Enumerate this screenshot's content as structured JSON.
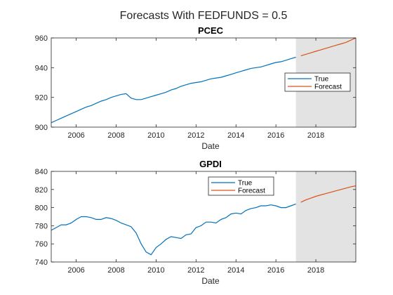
{
  "figure": {
    "title": "Forecasts With FEDFUNDS = 0.5"
  },
  "chart_data": [
    {
      "type": "line",
      "title": "PCEC",
      "xlabel": "Date",
      "ylabel": "",
      "xlim": [
        2004.75,
        2020.0
      ],
      "ylim": [
        900,
        960
      ],
      "xticks": [
        2006,
        2008,
        2010,
        2012,
        2014,
        2016,
        2018
      ],
      "yticks": [
        900,
        920,
        940,
        960
      ],
      "shaded_region": [
        2017.0,
        2020.0
      ],
      "legend_position": "right",
      "series": [
        {
          "name": "True",
          "color": "#0072BD",
          "x": [
            2004.75,
            2005.0,
            2005.25,
            2005.5,
            2005.75,
            2006.0,
            2006.25,
            2006.5,
            2006.75,
            2007.0,
            2007.25,
            2007.5,
            2007.75,
            2008.0,
            2008.25,
            2008.5,
            2008.75,
            2009.0,
            2009.25,
            2009.5,
            2009.75,
            2010.0,
            2010.25,
            2010.5,
            2010.75,
            2011.0,
            2011.25,
            2011.5,
            2011.75,
            2012.0,
            2012.25,
            2012.5,
            2012.75,
            2013.0,
            2013.25,
            2013.5,
            2013.75,
            2014.0,
            2014.25,
            2014.5,
            2014.75,
            2015.0,
            2015.25,
            2015.5,
            2015.75,
            2016.0,
            2016.25,
            2016.5,
            2016.75,
            2017.0
          ],
          "values": [
            903.0,
            904.5,
            906.0,
            907.5,
            909.0,
            910.5,
            912.0,
            913.5,
            914.5,
            916.0,
            917.5,
            918.5,
            920.0,
            921.0,
            922.0,
            922.5,
            919.5,
            918.5,
            918.5,
            919.5,
            920.5,
            921.5,
            922.5,
            923.5,
            925.0,
            926.0,
            927.5,
            928.5,
            929.5,
            930.0,
            930.5,
            931.5,
            932.5,
            933.0,
            933.5,
            934.5,
            935.5,
            936.5,
            937.5,
            938.5,
            939.5,
            940.0,
            940.5,
            941.5,
            942.5,
            943.5,
            944.0,
            945.0,
            946.0,
            947.0
          ]
        },
        {
          "name": "Forecast",
          "color": "#D95319",
          "x": [
            2017.25,
            2017.5,
            2017.75,
            2018.0,
            2018.25,
            2018.5,
            2018.75,
            2019.0,
            2019.25,
            2019.5,
            2019.75,
            2020.0
          ],
          "values": [
            948.0,
            949.0,
            950.0,
            951.0,
            952.0,
            953.0,
            954.0,
            955.0,
            956.0,
            957.0,
            958.5,
            960.0
          ]
        }
      ]
    },
    {
      "type": "line",
      "title": "GPDI",
      "xlabel": "Date",
      "ylabel": "",
      "xlim": [
        2004.75,
        2020.0
      ],
      "ylim": [
        740,
        840
      ],
      "xticks": [
        2006,
        2008,
        2010,
        2012,
        2014,
        2016,
        2018
      ],
      "yticks": [
        740,
        760,
        780,
        800,
        820,
        840
      ],
      "shaded_region": [
        2017.0,
        2020.0
      ],
      "legend_position": "top-right",
      "series": [
        {
          "name": "True",
          "color": "#0072BD",
          "x": [
            2004.75,
            2005.0,
            2005.25,
            2005.5,
            2005.75,
            2006.0,
            2006.25,
            2006.5,
            2006.75,
            2007.0,
            2007.25,
            2007.5,
            2007.75,
            2008.0,
            2008.25,
            2008.5,
            2008.75,
            2009.0,
            2009.25,
            2009.5,
            2009.75,
            2010.0,
            2010.25,
            2010.5,
            2010.75,
            2011.0,
            2011.25,
            2011.5,
            2011.75,
            2012.0,
            2012.25,
            2012.5,
            2012.75,
            2013.0,
            2013.25,
            2013.5,
            2013.75,
            2014.0,
            2014.25,
            2014.5,
            2014.75,
            2015.0,
            2015.25,
            2015.5,
            2015.75,
            2016.0,
            2016.25,
            2016.5,
            2016.75,
            2017.0
          ],
          "values": [
            775.0,
            778.0,
            781.0,
            781.0,
            783.0,
            787.0,
            790.0,
            790.0,
            789.0,
            787.0,
            787.0,
            789.0,
            788.0,
            786.0,
            783.0,
            781.0,
            779.0,
            772.0,
            760.0,
            751.0,
            748.0,
            756.0,
            760.0,
            765.0,
            768.0,
            767.0,
            766.0,
            770.0,
            771.0,
            778.0,
            780.0,
            784.0,
            784.0,
            783.0,
            787.0,
            789.0,
            793.0,
            794.0,
            793.0,
            797.0,
            799.0,
            800.0,
            802.0,
            802.0,
            803.0,
            802.0,
            800.0,
            800.0,
            802.0,
            804.0
          ]
        },
        {
          "name": "Forecast",
          "color": "#D95319",
          "x": [
            2017.25,
            2017.5,
            2017.75,
            2018.0,
            2018.25,
            2018.5,
            2018.75,
            2019.0,
            2019.25,
            2019.5,
            2019.75,
            2020.0
          ],
          "values": [
            806.0,
            808.5,
            810.5,
            812.5,
            814.0,
            815.5,
            817.0,
            818.5,
            820.0,
            821.5,
            823.0,
            824.0
          ]
        }
      ]
    }
  ]
}
